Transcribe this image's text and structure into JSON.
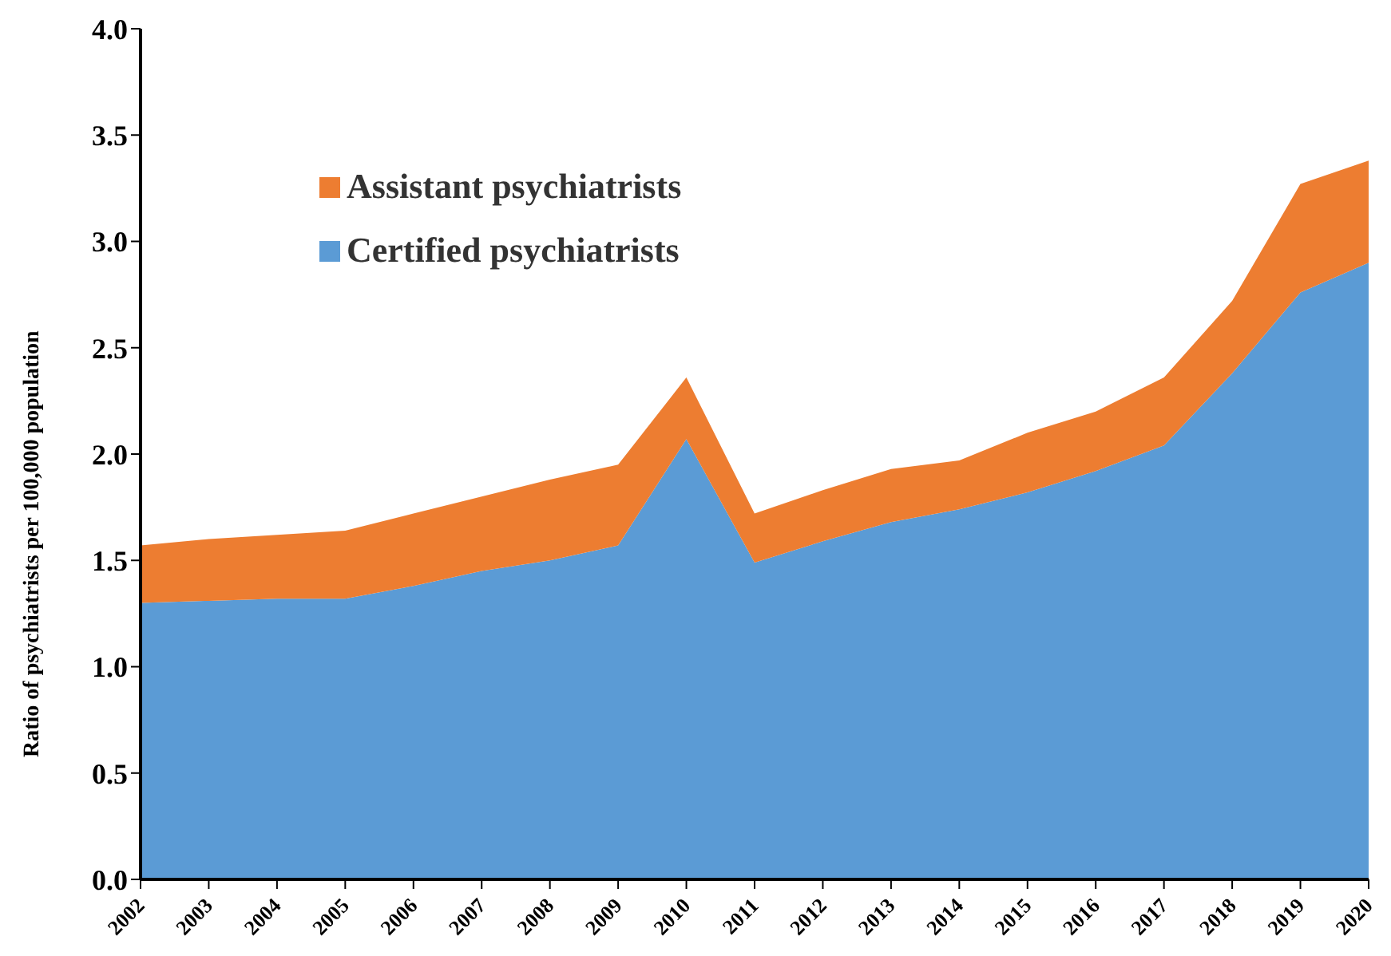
{
  "chart_data": {
    "type": "area",
    "stacked": true,
    "ylabel": "Ratio of psychiatrists per 100,000 population",
    "legend": "top left",
    "grid": false,
    "categories": [
      "2002",
      "2003",
      "2004",
      "2005",
      "2006",
      "2007",
      "2008",
      "2009",
      "2010",
      "2011",
      "2012",
      "2013",
      "2014",
      "2015",
      "2016",
      "2017",
      "2018",
      "2019",
      "2020"
    ],
    "ylim": [
      0,
      4
    ],
    "yticks": [
      {
        "value": 0,
        "label": "0.0"
      },
      {
        "value": 0.5,
        "label": "0.5"
      },
      {
        "value": 1,
        "label": "1.0"
      },
      {
        "value": 1.5,
        "label": "1.5"
      },
      {
        "value": 2,
        "label": "2.0"
      },
      {
        "value": 2.5,
        "label": "2.5"
      },
      {
        "value": 3,
        "label": "3.0"
      },
      {
        "value": 3.5,
        "label": "3.5"
      },
      {
        "value": 4,
        "label": "4.0"
      }
    ],
    "series": [
      {
        "name": "Certified psychiatrists",
        "color": "#5b9bd5",
        "values": [
          1.3,
          1.31,
          1.32,
          1.32,
          1.38,
          1.45,
          1.5,
          1.57,
          2.07,
          1.49,
          1.59,
          1.68,
          1.74,
          1.82,
          1.92,
          2.04,
          2.38,
          2.76,
          2.9
        ]
      },
      {
        "name": "Assistant psychiatrists",
        "color": "#ed7d31",
        "values": [
          0.27,
          0.29,
          0.3,
          0.32,
          0.34,
          0.35,
          0.38,
          0.38,
          0.29,
          0.23,
          0.24,
          0.25,
          0.23,
          0.28,
          0.28,
          0.32,
          0.34,
          0.51,
          0.48
        ]
      }
    ]
  }
}
